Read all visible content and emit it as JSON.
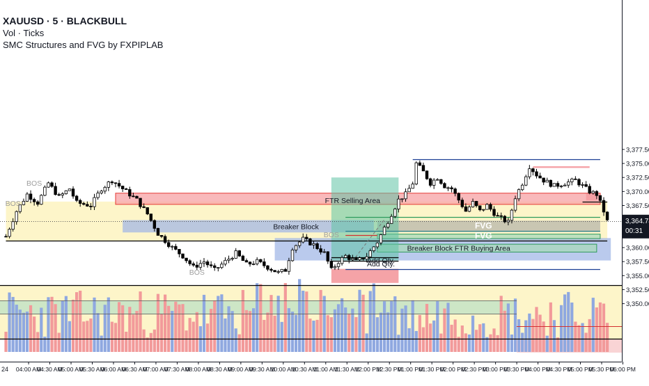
{
  "header": {
    "symbol_line": "XAUUSD · 5 · BLACKBULL",
    "volume_line": "Vol · Ticks",
    "indicator_line": "SMC Structures and FVG by FXPIPLAB"
  },
  "price_badge": {
    "price": "3,364.74",
    "countdown": "00:31",
    "color": "#131722"
  },
  "colors": {
    "up": "#ffffff",
    "down": "#000000",
    "wick": "#000000",
    "vol_up": "#8fa8e0",
    "vol_down": "#f29a9a",
    "red_zone": "#f7a1a4",
    "blue_zone": "#9fb5e6",
    "yellow_zone": "#fdf5c9",
    "green_zone": "#b6dfc7",
    "teal_zone": "#5fc3a4",
    "navy": "#1b3f94"
  },
  "chart_data": {
    "type": "candlestick",
    "y_axis": {
      "range": [
        3347.4,
        3378.5
      ],
      "ticks": [
        "3,350.00",
        "3,352.50",
        "3,355.00",
        "3,357.50",
        "3,360.00",
        "3,362.50",
        "3,365.00",
        "3,367.50",
        "3,370.00",
        "3,372.50",
        "3,375.00",
        "3,377.50"
      ],
      "tick_values": [
        3350,
        3352.5,
        3355,
        3357.5,
        3360,
        3362.5,
        3365,
        3367.5,
        3370,
        3372.5,
        3375,
        3377.5
      ]
    },
    "x_axis": {
      "labels": [
        "04:00 AM",
        "04:30 AM",
        "05:00 AM",
        "05:30 AM",
        "06:00 AM",
        "06:30 AM",
        "07:00 AM",
        "07:30 AM",
        "08:00 AM",
        "08:30 AM",
        "09:00 AM",
        "09:30 AM",
        "10:00 AM",
        "10:30 AM",
        "11:00 AM",
        "11:30 AM",
        "12:00 PM",
        "12:30 PM",
        "01:00 PM",
        "01:30 PM",
        "02:00 PM",
        "02:30 PM",
        "03:00 PM",
        "03:30 PM",
        "04:00 PM",
        "04:30 PM",
        "05:00 PM",
        "05:30 PM",
        "06:00 PM"
      ],
      "edge_label": "24",
      "bars_per_label": 6,
      "first_label_bar": 7
    },
    "close_path": [
      [
        0,
        3362.0
      ],
      [
        3,
        3366.5
      ],
      [
        6,
        3369.5
      ],
      [
        9,
        3368.0
      ],
      [
        12,
        3371.5
      ],
      [
        15,
        3369.0
      ],
      [
        18,
        3370.5
      ],
      [
        20,
        3368.0
      ],
      [
        24,
        3367.5
      ],
      [
        27,
        3370.5
      ],
      [
        30,
        3372.0
      ],
      [
        34,
        3370.0
      ],
      [
        37,
        3368.5
      ],
      [
        40,
        3366.0
      ],
      [
        43,
        3362.5
      ],
      [
        47,
        3360.0
      ],
      [
        50,
        3358.5
      ],
      [
        53,
        3356.5
      ],
      [
        56,
        3357.5
      ],
      [
        59,
        3356.0
      ],
      [
        62,
        3357.5
      ],
      [
        65,
        3359.0
      ],
      [
        68,
        3357.0
      ],
      [
        71,
        3357.5
      ],
      [
        74,
        3356.5
      ],
      [
        77,
        3355.5
      ],
      [
        79,
        3356.0
      ],
      [
        81,
        3360.0
      ],
      [
        84,
        3361.5
      ],
      [
        87,
        3360.5
      ],
      [
        90,
        3359.0
      ],
      [
        92,
        3356.0
      ],
      [
        94,
        3357.5
      ],
      [
        96,
        3358.5
      ],
      [
        99,
        3357.5
      ],
      [
        102,
        3358.5
      ],
      [
        105,
        3361.0
      ],
      [
        107,
        3363.5
      ],
      [
        109,
        3366.0
      ],
      [
        111,
        3368.5
      ],
      [
        113,
        3369.5
      ],
      [
        115,
        3371.5
      ],
      [
        116,
        3375.0
      ],
      [
        118,
        3373.5
      ],
      [
        120,
        3371.5
      ],
      [
        122,
        3372.5
      ],
      [
        124,
        3371.0
      ],
      [
        126,
        3370.5
      ],
      [
        128,
        3368.5
      ],
      [
        130,
        3366.5
      ],
      [
        132,
        3368.0
      ],
      [
        134,
        3366.5
      ],
      [
        136,
        3367.5
      ],
      [
        139,
        3365.5
      ],
      [
        142,
        3364.5
      ],
      [
        144,
        3369.0
      ],
      [
        146,
        3371.5
      ],
      [
        148,
        3374.5
      ],
      [
        150,
        3373.0
      ],
      [
        152,
        3372.0
      ],
      [
        155,
        3371.0
      ],
      [
        158,
        3371.5
      ],
      [
        161,
        3372.0
      ],
      [
        163,
        3371.0
      ],
      [
        165,
        3370.0
      ],
      [
        167,
        3369.5
      ],
      [
        169,
        3366.5
      ],
      [
        170,
        3364.7
      ]
    ],
    "volume": {
      "max_label": "",
      "note": "volume histogram, blue = up bars, red = down bars"
    },
    "horizontal_lines": [
      {
        "name": "support-black-line",
        "price": 3361.2,
        "color": "#000000",
        "from": 0,
        "to": 170
      },
      {
        "name": "resistance-black-line",
        "price": 3368.2,
        "color": "#000000",
        "from": 163,
        "to": 170
      },
      {
        "name": "navy-top-line",
        "price": 3375.7,
        "color": "#1b3f94",
        "from": 115,
        "to": 168
      },
      {
        "name": "navy-bottom-line",
        "price": 3356.2,
        "color": "#1b3f94",
        "from": 96,
        "to": 168
      },
      {
        "name": "green-mid-line",
        "price": 3365.5,
        "color": "#2e9a5c",
        "from": 96,
        "to": 168
      },
      {
        "name": "teal-mid-line",
        "price": 3363.0,
        "color": "#2a7f8c",
        "from": 96,
        "to": 168
      },
      {
        "name": "red-mid-line",
        "price": 3362.2,
        "color": "#d32f2f",
        "from": 96,
        "to": 105
      },
      {
        "name": "black-short-line",
        "price": 3358.3,
        "color": "#000000",
        "from": 92,
        "to": 111
      },
      {
        "name": "black-short-line-2",
        "price": 3357.6,
        "color": "#000000",
        "from": 92,
        "to": 111
      }
    ],
    "zones": [
      {
        "name": "yellow-range-zone",
        "kind": "yellow",
        "price_top": 3368.2,
        "price_bottom": 3361.2,
        "from": 0,
        "to": 170
      },
      {
        "name": "red-supply-zone",
        "kind": "red",
        "price_top": 3369.7,
        "price_bottom": 3367.7,
        "from": 31,
        "to": 168
      },
      {
        "name": "blue-breaker-zone",
        "kind": "blue",
        "price_top": 3364.9,
        "price_bottom": 3362.7,
        "from": 33,
        "to": 104
      },
      {
        "name": "blue-buying-zone",
        "kind": "blue",
        "price_top": 3361.7,
        "price_bottom": 3357.7,
        "from": 76,
        "to": 171
      },
      {
        "name": "gray-fvg-zone",
        "kind": "gray",
        "price_top": 3364.8,
        "price_bottom": 3362.8,
        "from": 105,
        "to": 168
      },
      {
        "name": "green-fvg-zone",
        "kind": "green",
        "price_top": 3362.4,
        "price_bottom": 3361.6,
        "from": 105,
        "to": 168
      },
      {
        "name": "green-buying-box",
        "kind": "green",
        "price_top": 3360.6,
        "price_bottom": 3359.2,
        "from": 105,
        "to": 167
      },
      {
        "name": "teal-ftr-zone",
        "kind": "teal",
        "price_top": 3372.5,
        "price_bottom": 3357.7,
        "from": 92,
        "to": 111
      },
      {
        "name": "red-ftr-block",
        "kind": "redsolid",
        "price_top": 3356.2,
        "price_bottom": 3353.7,
        "from": 92,
        "to": 111
      },
      {
        "name": "red-small-bar",
        "kind": "redsolid",
        "price_top": 3374.5,
        "price_bottom": 3374.2,
        "from": 149,
        "to": 165
      },
      {
        "name": "red-right-stub",
        "kind": "redsolid",
        "price_top": 3369.6,
        "price_bottom": 3368.4,
        "from": 164,
        "to": 167
      }
    ],
    "annotations": [
      {
        "name": "label-bos-1",
        "text": "BOS",
        "bar": 8,
        "price": 3371.4,
        "color": "#9e9e9e"
      },
      {
        "name": "label-bos-2",
        "text": "BOS",
        "bar": 2,
        "price": 3367.8,
        "color": "#9e9e9e"
      },
      {
        "name": "label-bos-3",
        "text": "BOS",
        "bar": 92,
        "price": 3362.2,
        "color": "#9e9e9e"
      },
      {
        "name": "label-bos-4",
        "text": "BOS",
        "bar": 54,
        "price": 3355.5,
        "color": "#9e9e9e"
      },
      {
        "name": "label-ftr-selling",
        "text": "FTR Selling Area",
        "bar": 98,
        "price": 3368.3,
        "color": "#131722"
      },
      {
        "name": "label-breaker-block",
        "text": "Breaker Block",
        "bar": 82,
        "price": 3363.6,
        "color": "#131722"
      },
      {
        "name": "label-fvg-1",
        "text": "FVG",
        "bar": 135,
        "price": 3363.8,
        "color": "#ffffff"
      },
      {
        "name": "label-fvg-2",
        "text": "FVG",
        "bar": 135,
        "price": 3362.0,
        "color": "#ffffff"
      },
      {
        "name": "label-breaker-buying",
        "text": "Breaker Block FTR Buying Area",
        "bar": 128,
        "price": 3359.8,
        "color": "#131722"
      },
      {
        "name": "label-add-qty-1",
        "text": "Add Qty.",
        "bar": 106,
        "price": 3357.6,
        "color": "#131722"
      },
      {
        "name": "label-add-qty-2",
        "text": "Add Qty.",
        "bar": 106,
        "price": 3357.0,
        "color": "#131722"
      }
    ]
  }
}
